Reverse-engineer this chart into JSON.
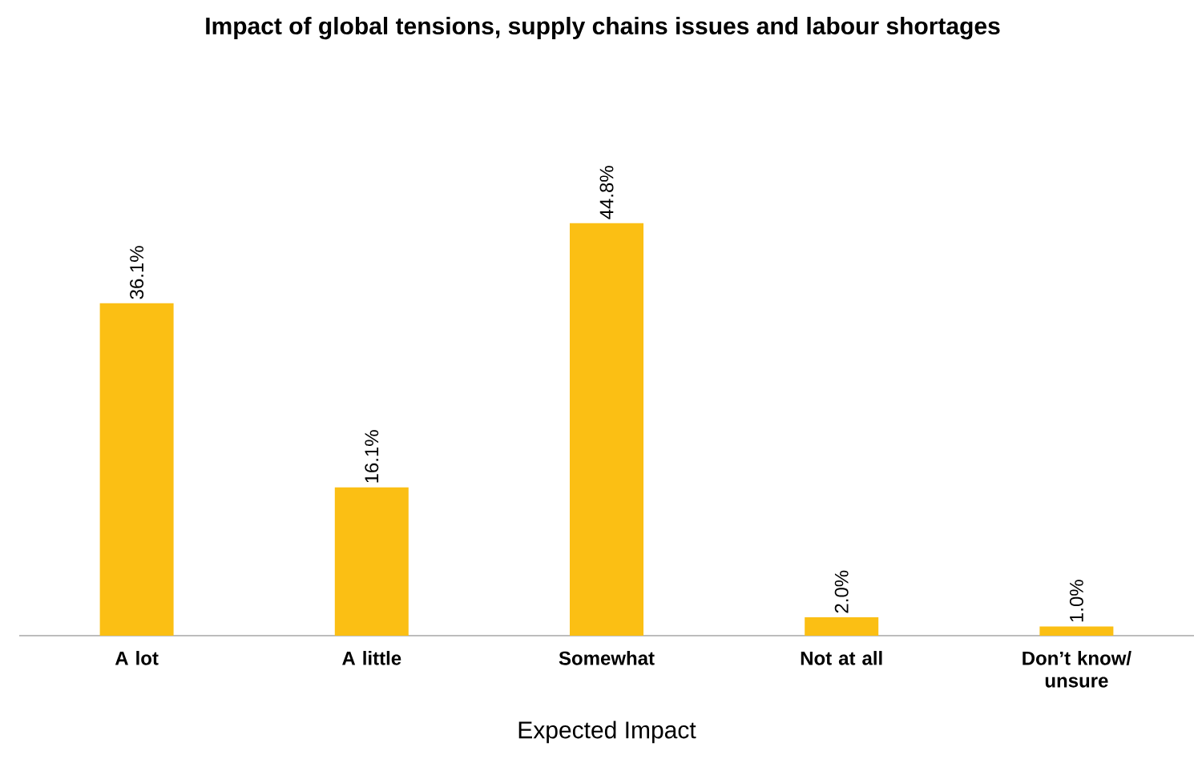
{
  "chart_data": {
    "type": "bar",
    "title": "Impact of global tensions, supply chains issues and labour shortages",
    "xlabel": "Expected Impact",
    "categories": [
      "A lot",
      "A little",
      "Somewhat",
      "Not at all",
      "Don’t know/ unsure"
    ],
    "values": [
      36.1,
      16.1,
      44.8,
      2.0,
      1.0
    ],
    "value_labels": [
      "36.1%",
      "16.1%",
      "44.8%",
      "2.0%",
      "1.0%"
    ],
    "color": "#fbbf14"
  }
}
